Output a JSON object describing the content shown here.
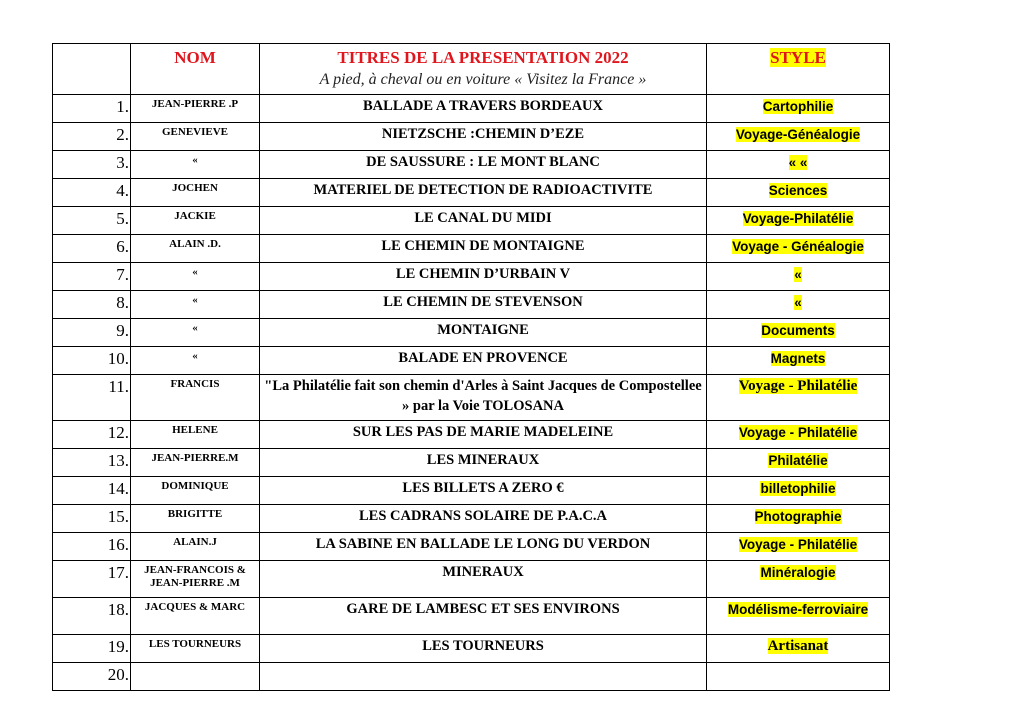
{
  "header": {
    "nom": "NOM",
    "titres": "TITRES DE LA PRESENTATION 2022",
    "subtitle": "A pied, à cheval ou en voiture « Visitez la France »",
    "style": "STYLE"
  },
  "highlight_color": "#ffff00",
  "header_color": "#e0161e",
  "rows": [
    {
      "num": "1.",
      "name": "JEAN-PIERRE .P",
      "title": "BALLADE A TRAVERS BORDEAUX",
      "style": "Cartophilie"
    },
    {
      "num": "2.",
      "name": "GENEVIEVE",
      "title": "NIETZSCHE :CHEMIN D’EZE",
      "style": "Voyage-Généalogie"
    },
    {
      "num": "3.",
      "name": "«",
      "title": "DE SAUSSURE : LE MONT BLANC",
      "style": "« «"
    },
    {
      "num": "4.",
      "name": "JOCHEN",
      "title": "MATERIEL DE DETECTION DE RADIOACTIVITE",
      "style": "Sciences"
    },
    {
      "num": "5.",
      "name": "JACKIE",
      "title": "LE CANAL DU MIDI",
      "style": "Voyage-Philatélie"
    },
    {
      "num": "6.",
      "name": "ALAIN .D.",
      "title": "LE CHEMIN DE MONTAIGNE",
      "style": "Voyage - Généalogie"
    },
    {
      "num": "7.",
      "name": "«",
      "title": "LE CHEMIN D’URBAIN V",
      "style": "«"
    },
    {
      "num": "8.",
      "name": "«",
      "title": "LE CHEMIN DE STEVENSON",
      "style": "«"
    },
    {
      "num": "9.",
      "name": "«",
      "title": "MONTAIGNE",
      "style": "Documents"
    },
    {
      "num": "10.",
      "name": "«",
      "title": "BALADE EN PROVENCE",
      "style": "Magnets"
    },
    {
      "num": "11.",
      "name": "FRANCIS",
      "title": "\"La Philatélie fait son chemin  d'Arles à Saint Jacques de Compostellee » par la Voie TOLOSANA",
      "style": "Voyage - Philatélie"
    },
    {
      "num": "12.",
      "name": "HELENE",
      "title": "SUR LES PAS DE MARIE MADELEINE",
      "style": "Voyage - Philatélie"
    },
    {
      "num": "13.",
      "name": "JEAN-PIERRE.M",
      "title": "LES MINERAUX",
      "style": "Philatélie"
    },
    {
      "num": "14.",
      "name": "DOMINIQUE",
      "title": "LES BILLETS A ZERO €",
      "style": "billetophilie"
    },
    {
      "num": "15.",
      "name": "BRIGITTE",
      "title": "LES CADRANS SOLAIRE DE P.A.C.A",
      "style": "Photographie"
    },
    {
      "num": "16.",
      "name": "ALAIN.J",
      "title": "LA SABINE EN BALLADE LE LONG DU VERDON",
      "style": "Voyage - Philatélie"
    },
    {
      "num": "17.",
      "name": "JEAN-FRANCOIS & JEAN-PIERRE .M",
      "title": "MINERAUX",
      "style": "Minéralogie"
    },
    {
      "num": "18.",
      "name": "JACQUES & MARC",
      "title": "GARE DE LAMBESC ET SES ENVIRONS",
      "style": "Modélisme-ferroviaire"
    },
    {
      "num": "19.",
      "name": "LES TOURNEURS",
      "title": "LES TOURNEURS",
      "style": "Artisanat"
    },
    {
      "num": "20.",
      "name": "",
      "title": "",
      "style": ""
    }
  ]
}
